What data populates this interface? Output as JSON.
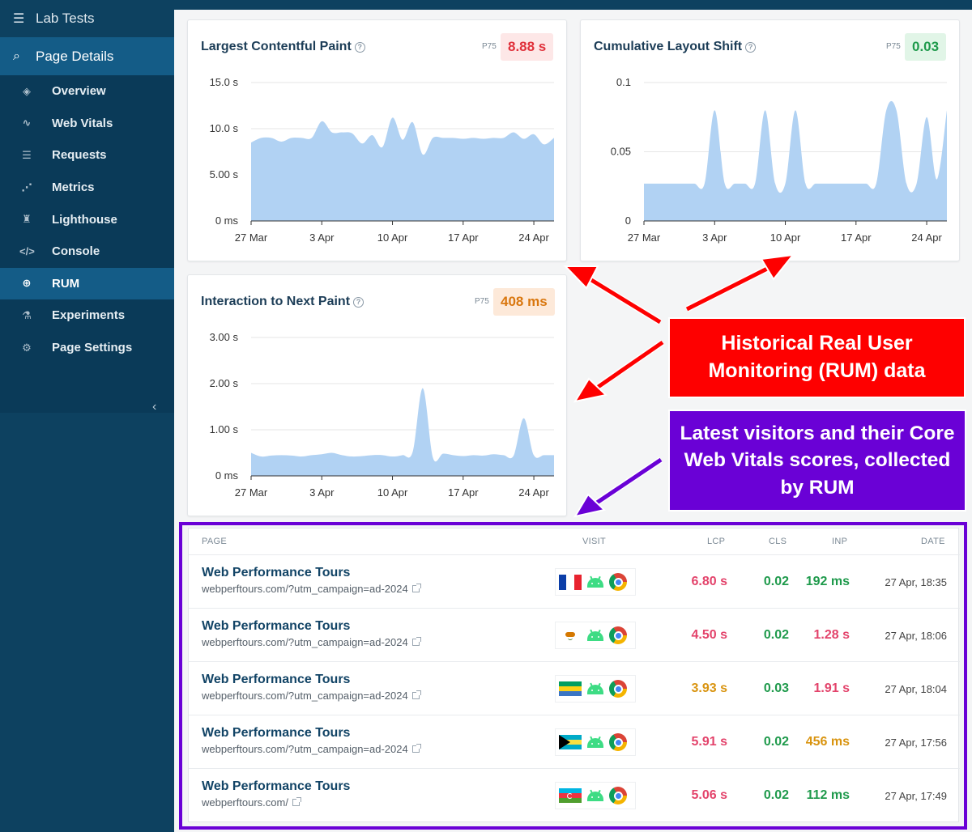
{
  "sidebar": {
    "top_label": "Lab Tests",
    "section_label": "Page Details",
    "items": [
      {
        "label": "Overview",
        "icon": "layers-icon"
      },
      {
        "label": "Web Vitals",
        "icon": "pulse-icon"
      },
      {
        "label": "Requests",
        "icon": "list-icon"
      },
      {
        "label": "Metrics",
        "icon": "line-chart-icon"
      },
      {
        "label": "Lighthouse",
        "icon": "lighthouse-icon"
      },
      {
        "label": "Console",
        "icon": "code-icon"
      },
      {
        "label": "RUM",
        "icon": "search-chart-icon",
        "active": true
      },
      {
        "label": "Experiments",
        "icon": "flask-icon"
      },
      {
        "label": "Page Settings",
        "icon": "gear-icon"
      }
    ]
  },
  "cards": {
    "lcp": {
      "title": "Largest Contentful Paint",
      "p75_label": "P75",
      "value": "8.88 s",
      "status_color": "#e0313b"
    },
    "cls": {
      "title": "Cumulative Layout Shift",
      "p75_label": "P75",
      "value": "0.03",
      "status_color": "#1f9a4c"
    },
    "inp": {
      "title": "Interaction to Next Paint",
      "p75_label": "P75",
      "value": "408 ms",
      "status_color": "#d9770f"
    }
  },
  "chart_data": [
    {
      "type": "area",
      "title": "Largest Contentful Paint",
      "x_tick_labels": [
        "27 Mar",
        "3 Apr",
        "10 Apr",
        "17 Apr",
        "24 Apr"
      ],
      "y_tick_labels": [
        "0 ms",
        "5.00 s",
        "10.0 s",
        "15.0 s"
      ],
      "ylim": [
        0,
        15
      ],
      "x_days": [
        0,
        1,
        2,
        3,
        4,
        5,
        6,
        7,
        8,
        9,
        10,
        11,
        12,
        13,
        14,
        15,
        16,
        17,
        18,
        19,
        20,
        21,
        22,
        23,
        24,
        25,
        26,
        27,
        28,
        29,
        30
      ],
      "values": [
        8.5,
        9.0,
        9.0,
        8.6,
        9.0,
        9.0,
        9.0,
        10.8,
        9.6,
        9.6,
        9.5,
        8.4,
        9.3,
        8.0,
        11.2,
        8.8,
        10.7,
        7.2,
        9.0,
        9.0,
        9.0,
        8.9,
        9.0,
        8.9,
        9.0,
        9.0,
        9.6,
        8.9,
        9.4,
        8.3,
        9.0
      ],
      "color": "#b1d2f3"
    },
    {
      "type": "area",
      "title": "Cumulative Layout Shift",
      "x_tick_labels": [
        "27 Mar",
        "3 Apr",
        "10 Apr",
        "17 Apr",
        "24 Apr"
      ],
      "y_tick_labels": [
        "0",
        "0.05",
        "0.1"
      ],
      "ylim": [
        0,
        0.1
      ],
      "x_days": [
        0,
        1,
        2,
        3,
        4,
        5,
        6,
        7,
        8,
        9,
        10,
        11,
        12,
        13,
        14,
        15,
        16,
        17,
        18,
        19,
        20,
        21,
        22,
        23,
        24,
        25,
        26,
        27,
        28,
        29,
        30
      ],
      "values": [
        0.027,
        0.027,
        0.027,
        0.027,
        0.027,
        0.027,
        0.027,
        0.08,
        0.027,
        0.027,
        0.027,
        0.027,
        0.08,
        0.027,
        0.027,
        0.08,
        0.027,
        0.027,
        0.027,
        0.027,
        0.027,
        0.027,
        0.027,
        0.027,
        0.08,
        0.08,
        0.027,
        0.027,
        0.075,
        0.03,
        0.08
      ],
      "color": "#b1d2f3"
    },
    {
      "type": "area",
      "title": "Interaction to Next Paint",
      "x_tick_labels": [
        "27 Mar",
        "3 Apr",
        "10 Apr",
        "17 Apr",
        "24 Apr"
      ],
      "y_tick_labels": [
        "0 ms",
        "1.00 s",
        "2.00 s",
        "3.00 s"
      ],
      "ylim": [
        0,
        3
      ],
      "x_days": [
        0,
        1,
        2,
        3,
        4,
        5,
        6,
        7,
        8,
        9,
        10,
        11,
        12,
        13,
        14,
        15,
        16,
        17,
        18,
        19,
        20,
        21,
        22,
        23,
        24,
        25,
        26,
        27,
        28,
        29,
        30
      ],
      "values": [
        0.5,
        0.42,
        0.44,
        0.45,
        0.44,
        0.42,
        0.45,
        0.47,
        0.5,
        0.45,
        0.42,
        0.43,
        0.45,
        0.45,
        0.42,
        0.45,
        0.52,
        1.9,
        0.4,
        0.48,
        0.45,
        0.43,
        0.45,
        0.44,
        0.47,
        0.45,
        0.44,
        1.25,
        0.45,
        0.45,
        0.45
      ],
      "color": "#b1d2f3"
    }
  ],
  "callouts": {
    "rum_history": "Historical Real User Monitoring (RUM) data",
    "latest_visitors": "Latest visitors and their Core Web Vitals scores, collected by RUM"
  },
  "table": {
    "headers": {
      "page": "PAGE",
      "visit": "VISIT",
      "lcp": "LCP",
      "cls": "CLS",
      "inp": "INP",
      "date": "DATE"
    },
    "rows": [
      {
        "name": "Web Performance Tours",
        "url": "webperftours.com/?utm_campaign=ad-2024",
        "flag": "france-flag",
        "lcp": "6.80 s",
        "lcp_status": "pink",
        "cls": "0.02",
        "cls_status": "green",
        "inp": "192 ms",
        "inp_status": "green",
        "date": "27 Apr, 18:35"
      },
      {
        "name": "Web Performance Tours",
        "url": "webperftours.com/?utm_campaign=ad-2024",
        "flag": "cyprus-flag",
        "lcp": "4.50 s",
        "lcp_status": "pink",
        "cls": "0.02",
        "cls_status": "green",
        "inp": "1.28 s",
        "inp_status": "pink",
        "date": "27 Apr, 18:06"
      },
      {
        "name": "Web Performance Tours",
        "url": "webperftours.com/?utm_campaign=ad-2024",
        "flag": "gabon-flag",
        "lcp": "3.93 s",
        "lcp_status": "orange",
        "cls": "0.03",
        "cls_status": "green",
        "inp": "1.91 s",
        "inp_status": "pink",
        "date": "27 Apr, 18:04"
      },
      {
        "name": "Web Performance Tours",
        "url": "webperftours.com/?utm_campaign=ad-2024",
        "flag": "bahamas-flag",
        "lcp": "5.91 s",
        "lcp_status": "pink",
        "cls": "0.02",
        "cls_status": "green",
        "inp": "456 ms",
        "inp_status": "orange",
        "date": "27 Apr, 17:56"
      },
      {
        "name": "Web Performance Tours",
        "url": "webperftours.com/",
        "flag": "azerbaijan-flag",
        "lcp": "5.06 s",
        "lcp_status": "pink",
        "cls": "0.02",
        "cls_status": "green",
        "inp": "112 ms",
        "inp_status": "green",
        "date": "27 Apr, 17:49"
      }
    ]
  }
}
